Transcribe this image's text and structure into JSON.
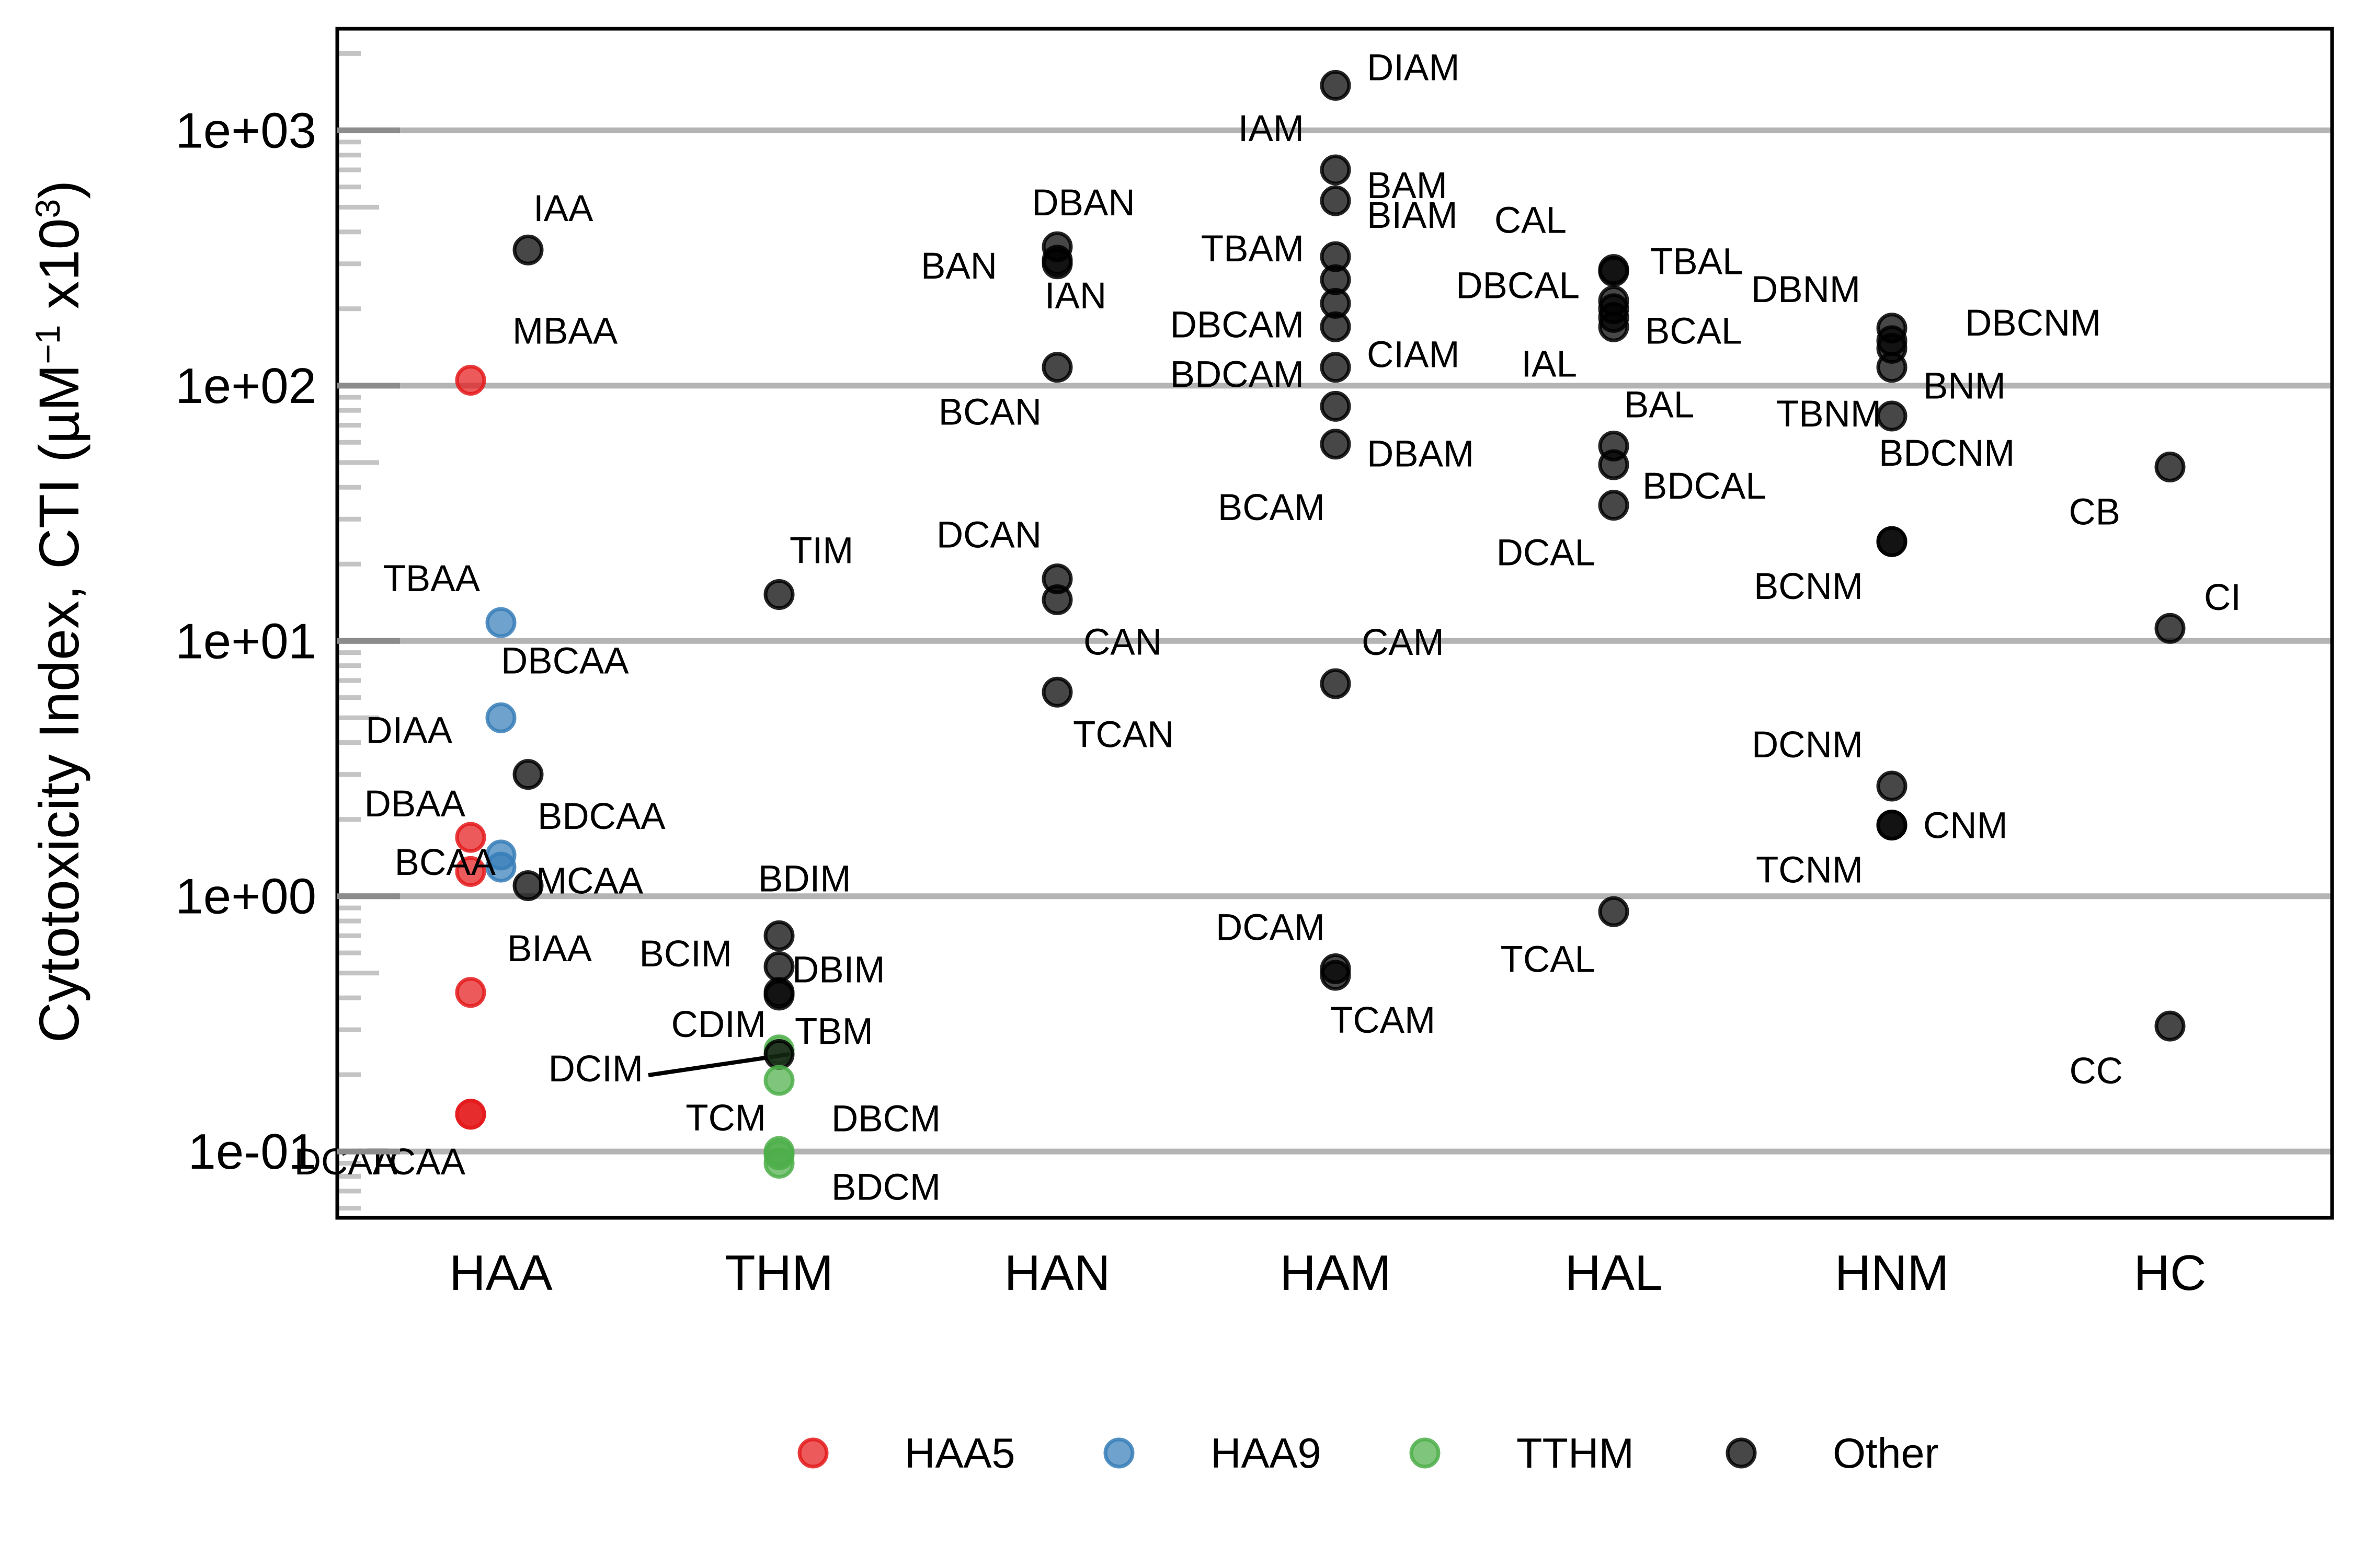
{
  "chart_data": {
    "type": "scatter",
    "title": "",
    "xlabel": "",
    "ylabel": {
      "prefix": "Cytotoxicity Index, CTI (µM",
      "sup1": "−1",
      "middle": " x10",
      "sup2": "3",
      "suffix": ")"
    },
    "y_scale": "log10",
    "ylim": [
      0.055,
      2500
    ],
    "y_ticks": [
      0.1,
      1,
      10,
      100,
      1000
    ],
    "y_tick_labels": [
      "1e-01",
      "1e+00",
      "1e+01",
      "1e+02",
      "1e+03"
    ],
    "grid": "major horizontal",
    "categories": [
      "HAA",
      "THM",
      "HAN",
      "HAM",
      "HAL",
      "HNM",
      "HC"
    ],
    "legend": {
      "position": "bottom",
      "entries": [
        {
          "name": "HAA5",
          "color": "#e41a1c"
        },
        {
          "name": "HAA9",
          "color": "#377eb8"
        },
        {
          "name": "TTHM",
          "color": "#4daf4a"
        },
        {
          "name": "Other",
          "color": "#000000"
        }
      ]
    },
    "points": [
      {
        "label": "IAA",
        "category": "HAA",
        "value": 340,
        "group": "Other"
      },
      {
        "label": "MBAA",
        "category": "HAA",
        "value": 105,
        "group": "HAA5"
      },
      {
        "label": "TBAA",
        "category": "HAA",
        "value": 11.8,
        "group": "HAA9"
      },
      {
        "label": "DBCAA",
        "category": "HAA",
        "value": 5.0,
        "group": "HAA9"
      },
      {
        "label": "DIAA",
        "category": "HAA",
        "value": 3.0,
        "group": "Other"
      },
      {
        "label": "DBAA",
        "category": "HAA",
        "value": 1.7,
        "group": "HAA5"
      },
      {
        "label": "BDCAA",
        "category": "HAA",
        "value": 1.45,
        "group": "HAA9"
      },
      {
        "label": "BCAA",
        "category": "HAA",
        "value": 1.3,
        "group": "HAA9"
      },
      {
        "label": "",
        "category": "HAA",
        "value": 1.25,
        "group": "HAA5"
      },
      {
        "label": "MCAA",
        "category": "HAA",
        "value": 1.1,
        "group": "Other"
      },
      {
        "label": "BIAA",
        "category": "HAA",
        "value": 0.42,
        "group": "HAA5"
      },
      {
        "label": "TCAA",
        "category": "HAA",
        "value": 0.14,
        "group": "HAA5"
      },
      {
        "label": "DCAA",
        "category": "HAA",
        "value": 0.14,
        "group": "HAA5"
      },
      {
        "label": "TIM",
        "category": "THM",
        "value": 15.2,
        "group": "Other"
      },
      {
        "label": "BDIM",
        "category": "THM",
        "value": 0.7,
        "group": "Other"
      },
      {
        "label": "DBIM",
        "category": "THM",
        "value": 0.53,
        "group": "Other"
      },
      {
        "label": "BCIM",
        "category": "THM",
        "value": 0.42,
        "group": "Other"
      },
      {
        "label": "",
        "category": "THM",
        "value": 0.41,
        "group": "Other"
      },
      {
        "label": "CDIM",
        "category": "THM",
        "value": 0.25,
        "group": "TTHM"
      },
      {
        "label": "TBM",
        "category": "THM",
        "value": 0.24,
        "group": "Other"
      },
      {
        "label": "DCIM",
        "category": "THM",
        "value": 0.19,
        "group": "TTHM"
      },
      {
        "label": "TCM",
        "category": "THM",
        "value": 0.1,
        "group": "TTHM"
      },
      {
        "label": "DBCM",
        "category": "THM",
        "value": 0.097,
        "group": "TTHM"
      },
      {
        "label": "BDCM",
        "category": "THM",
        "value": 0.09,
        "group": "TTHM"
      },
      {
        "label": "DBAN",
        "category": "HAN",
        "value": 350,
        "group": "Other"
      },
      {
        "label": "BAN",
        "category": "HAN",
        "value": 310,
        "group": "Other"
      },
      {
        "label": "IAN",
        "category": "HAN",
        "value": 300,
        "group": "Other"
      },
      {
        "label": "BCAN",
        "category": "HAN",
        "value": 118,
        "group": "Other"
      },
      {
        "label": "DCAN",
        "category": "HAN",
        "value": 17.5,
        "group": "Other"
      },
      {
        "label": "CAN",
        "category": "HAN",
        "value": 14.5,
        "group": "Other"
      },
      {
        "label": "TCAN",
        "category": "HAN",
        "value": 6.3,
        "group": "Other"
      },
      {
        "label": "DIAM",
        "category": "HAM",
        "value": 1500,
        "group": "Other"
      },
      {
        "label": "IAM",
        "category": "HAM",
        "value": 700,
        "group": "Other"
      },
      {
        "label": "BAM",
        "category": "HAM",
        "value": 530,
        "group": "Other"
      },
      {
        "label": "BIAM",
        "category": "HAM",
        "value": 320,
        "group": "Other"
      },
      {
        "label": "TBAM",
        "category": "HAM",
        "value": 260,
        "group": "Other"
      },
      {
        "label": "DBCAM",
        "category": "HAM",
        "value": 210,
        "group": "Other"
      },
      {
        "label": "BDCAM",
        "category": "HAM",
        "value": 170,
        "group": "Other"
      },
      {
        "label": "CIAM",
        "category": "HAM",
        "value": 118,
        "group": "Other"
      },
      {
        "label": "DBAM",
        "category": "HAM",
        "value": 83,
        "group": "Other"
      },
      {
        "label": "BCAM",
        "category": "HAM",
        "value": 59,
        "group": "Other"
      },
      {
        "label": "CAM",
        "category": "HAM",
        "value": 6.8,
        "group": "Other"
      },
      {
        "label": "DCAM",
        "category": "HAM",
        "value": 0.52,
        "group": "Other"
      },
      {
        "label": "TCAM",
        "category": "HAM",
        "value": 0.49,
        "group": "Other"
      },
      {
        "label": "CAL",
        "category": "HAL",
        "value": 285,
        "group": "Other"
      },
      {
        "label": "TBAL",
        "category": "HAL",
        "value": 280,
        "group": "Other"
      },
      {
        "label": "DBCAL",
        "category": "HAL",
        "value": 215,
        "group": "Other"
      },
      {
        "label": "",
        "category": "HAL",
        "value": 200,
        "group": "Other"
      },
      {
        "label": "BCAL",
        "category": "HAL",
        "value": 185,
        "group": "Other"
      },
      {
        "label": "IAL",
        "category": "HAL",
        "value": 170,
        "group": "Other"
      },
      {
        "label": "BAL",
        "category": "HAL",
        "value": 58,
        "group": "Other"
      },
      {
        "label": "BDCAL",
        "category": "HAL",
        "value": 49,
        "group": "Other"
      },
      {
        "label": "DCAL",
        "category": "HAL",
        "value": 34,
        "group": "Other"
      },
      {
        "label": "TCAL",
        "category": "HAL",
        "value": 0.87,
        "group": "Other"
      },
      {
        "label": "DBNM",
        "category": "HNM",
        "value": 168,
        "group": "Other"
      },
      {
        "label": "DBCNM",
        "category": "HNM",
        "value": 150,
        "group": "Other"
      },
      {
        "label": "",
        "category": "HNM",
        "value": 140,
        "group": "Other"
      },
      {
        "label": "BNM",
        "category": "HNM",
        "value": 118,
        "group": "Other"
      },
      {
        "label": "TBNM",
        "category": "HNM",
        "value": 76,
        "group": "Other"
      },
      {
        "label": "BDCNM",
        "category": "HNM",
        "value": 24.5,
        "group": "Other"
      },
      {
        "label": "BCNM",
        "category": "HNM",
        "value": 24.5,
        "group": "Other"
      },
      {
        "label": "DCNM",
        "category": "HNM",
        "value": 2.7,
        "group": "Other"
      },
      {
        "label": "CNM",
        "category": "HNM",
        "value": 1.9,
        "group": "Other"
      },
      {
        "label": "TCNM",
        "category": "HNM",
        "value": 1.9,
        "group": "Other"
      },
      {
        "label": "CB",
        "category": "HC",
        "value": 48,
        "group": "Other"
      },
      {
        "label": "CI",
        "category": "HC",
        "value": 11.2,
        "group": "Other"
      },
      {
        "label": "CC",
        "category": "HC",
        "value": 0.31,
        "group": "Other"
      }
    ]
  }
}
